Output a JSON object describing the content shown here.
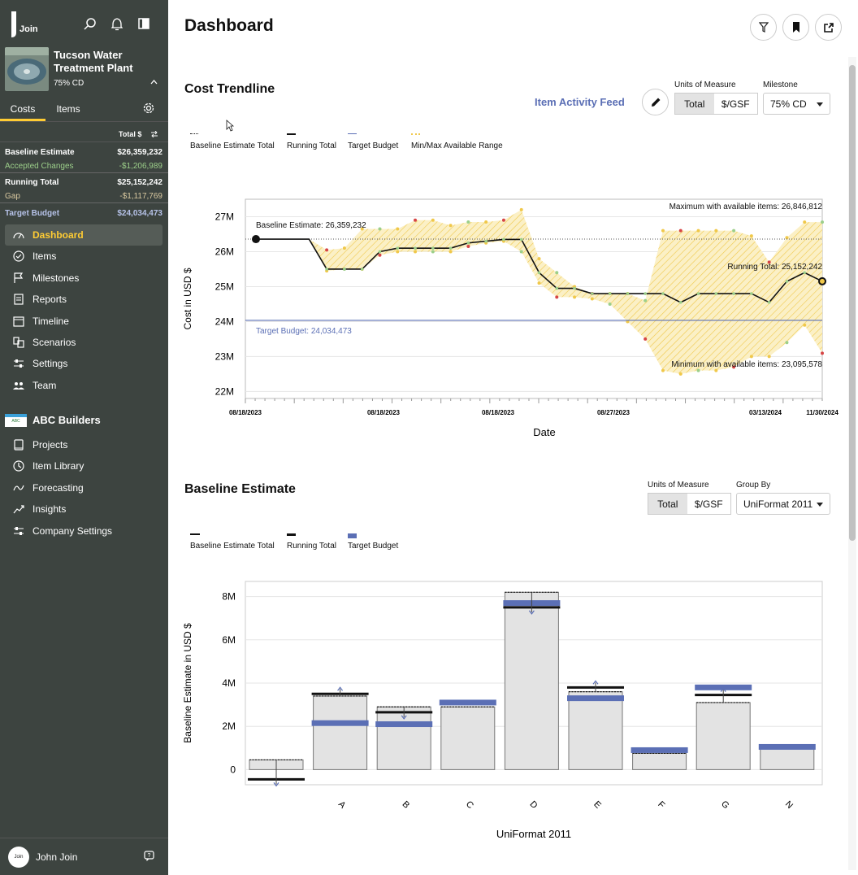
{
  "sidebar": {
    "logo_text": "Join",
    "project": {
      "name_line1": "Tucson Water",
      "name_line2": "Treatment Plant",
      "milestone": "75% CD"
    },
    "tabs": [
      "Costs",
      "Items"
    ],
    "total_label": "Total $",
    "costs": [
      {
        "label": "Baseline Estimate",
        "value": "$26,359,232",
        "color": "#ffffff"
      },
      {
        "label": "Accepted Changes",
        "value": "-$1,206,989",
        "color": "#9ccf8a"
      },
      {
        "label": "Running Total",
        "value": "$25,152,242",
        "color": "#ffffff"
      },
      {
        "label": "Gap",
        "value": "-$1,117,769",
        "color": "#d9c9a0"
      },
      {
        "label": "Target Budget",
        "value": "$24,034,473",
        "color": "#b6c2e8"
      }
    ],
    "nav": [
      {
        "label": "Dashboard",
        "icon": "gauge-icon",
        "active": true
      },
      {
        "label": "Items",
        "icon": "check-circle-icon"
      },
      {
        "label": "Milestones",
        "icon": "flag-icon"
      },
      {
        "label": "Reports",
        "icon": "report-icon"
      },
      {
        "label": "Timeline",
        "icon": "calendar-icon"
      },
      {
        "label": "Scenarios",
        "icon": "scenarios-icon"
      },
      {
        "label": "Settings",
        "icon": "sliders-icon"
      },
      {
        "label": "Team",
        "icon": "team-icon"
      }
    ],
    "company": {
      "name": "ABC Builders"
    },
    "company_nav": [
      {
        "label": "Projects",
        "icon": "projects-icon"
      },
      {
        "label": "Item Library",
        "icon": "library-icon"
      },
      {
        "label": "Forecasting",
        "icon": "forecast-icon"
      },
      {
        "label": "Insights",
        "icon": "insights-icon"
      },
      {
        "label": "Company Settings",
        "icon": "sliders-icon"
      }
    ],
    "user": {
      "name": "John Join",
      "avatar_text": "Join"
    }
  },
  "header": {
    "title": "Dashboard"
  },
  "cost_trendline": {
    "title": "Cost Trendline",
    "activity_link": "Item Activity Feed",
    "units_label": "Units of Measure",
    "units_options": [
      "Total",
      "$/GSF"
    ],
    "milestone_label": "Milestone",
    "milestone_value": "75% CD",
    "legend": [
      "Baseline Estimate Total",
      "Running Total",
      "Target Budget",
      "Min/Max Available Range"
    ],
    "annotations": {
      "baseline": "Baseline Estimate: 26,359,232",
      "max": "Maximum with available items: 26,846,812",
      "running": "Running Total: 25,152,242",
      "target": "Target Budget: 24,034,473",
      "min": "Minimum with available items: 23,095,578"
    }
  },
  "baseline_estimate": {
    "title": "Baseline Estimate",
    "units_label": "Units of Measure",
    "units_options": [
      "Total",
      "$/GSF"
    ],
    "group_label": "Group By",
    "group_value": "UniFormat 2011",
    "legend": [
      "Baseline Estimate Total",
      "Running Total",
      "Target Budget"
    ]
  },
  "colors": {
    "sidebar": "#3d4440",
    "accent": "#ffcc33",
    "target": "#5b6fb5",
    "range": "#f0c84a"
  },
  "chart_data": [
    {
      "type": "line",
      "title": "Cost Trendline",
      "xlabel": "Date",
      "ylabel": "Cost in USD $",
      "yticks": [
        "22M",
        "23M",
        "24M",
        "25M",
        "26M",
        "27M"
      ],
      "ylim": [
        21800000,
        27500000
      ],
      "xticks": [
        "08/18/2023",
        "08/18/2023",
        "08/18/2023",
        "08/27/2023",
        "03/13/2024",
        "11/30/2024"
      ],
      "baseline_total": 26359232,
      "target_budget": 24034473,
      "running_total": [
        26359232,
        26359232,
        26359232,
        26359232,
        25500000,
        25500000,
        25500000,
        26000000,
        26100000,
        26100000,
        26100000,
        26100000,
        26250000,
        26300000,
        26350000,
        26350000,
        25400000,
        24950000,
        24950000,
        24800000,
        24800000,
        24800000,
        24800000,
        24800000,
        24550000,
        24800000,
        24800000,
        24800000,
        24800000,
        24550000,
        25150000,
        25400000,
        25152242
      ],
      "max_available": [
        26359232,
        26359232,
        26359232,
        26359232,
        26050000,
        26100000,
        26650000,
        26650000,
        26650000,
        26900000,
        26900000,
        26750000,
        26850000,
        26850000,
        26900000,
        27200000,
        25800000,
        25400000,
        25000000,
        24800000,
        24800000,
        24800000,
        24600000,
        26600000,
        26600000,
        26600000,
        26600000,
        26600000,
        26450000,
        25700000,
        26400000,
        26846812,
        26846812
      ],
      "min_available": [
        26359232,
        26359232,
        26359232,
        26359232,
        25450000,
        25500000,
        25500000,
        25900000,
        26000000,
        26000000,
        26000000,
        26000000,
        26150000,
        26250000,
        26300000,
        26000000,
        25100000,
        24700000,
        24700000,
        24650000,
        24500000,
        24000000,
        23500000,
        22600000,
        22500000,
        22600000,
        22600000,
        22700000,
        23000000,
        23000000,
        23400000,
        23900000,
        23095578
      ]
    },
    {
      "type": "bar",
      "title": "Baseline Estimate",
      "xlabel": "UniFormat 2011",
      "ylabel": "Baseline Estimate in USD $",
      "yticks": [
        "0",
        "2M",
        "4M",
        "6M",
        "8M"
      ],
      "ylim": [
        -700000,
        8700000
      ],
      "categories": [
        "",
        "A",
        "B",
        "C",
        "D",
        "E",
        "F",
        "G",
        "N"
      ],
      "series": [
        {
          "name": "Baseline Estimate Total",
          "values": [
            450000,
            3400000,
            2900000,
            2900000,
            8200000,
            3600000,
            750000,
            3100000,
            1100000
          ]
        },
        {
          "name": "Running Total",
          "values": [
            -450000,
            3500000,
            2650000,
            null,
            7500000,
            3800000,
            null,
            3450000,
            null
          ]
        },
        {
          "name": "Target Budget",
          "values": [
            null,
            2150000,
            2100000,
            3100000,
            7700000,
            3300000,
            900000,
            3800000,
            1050000
          ]
        }
      ]
    }
  ]
}
